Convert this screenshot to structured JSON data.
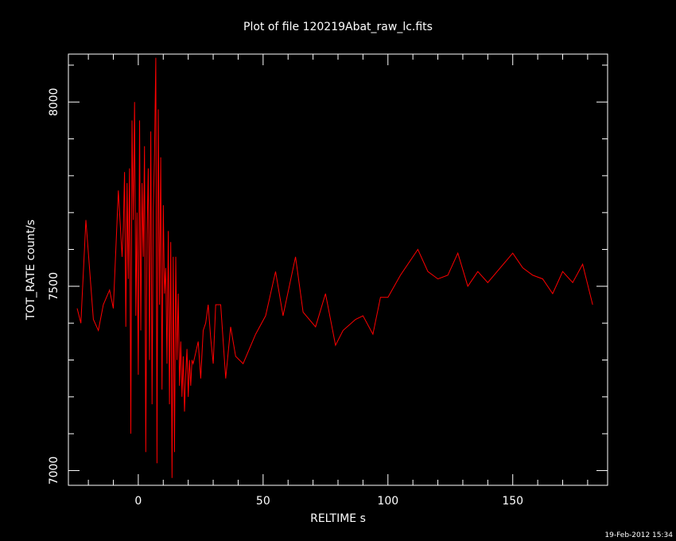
{
  "chart_data": {
    "type": "line",
    "title": "Plot of file 120219Abat_raw_lc.fits",
    "xlabel": "RELTIME  s",
    "ylabel": "TOT_RATE  count/s",
    "xlim": [
      -28,
      188
    ],
    "ylim": [
      6960,
      8130
    ],
    "xticks": [
      0,
      50,
      100,
      150
    ],
    "yticks": [
      7000,
      7500,
      8000
    ],
    "grid": false,
    "line_color": "#ff0000",
    "axis_color": "#ffffff",
    "background": "#000000",
    "series": [
      {
        "x": [
          -24.5,
          -23,
          -21,
          -18,
          -16,
          -14,
          -11.5,
          -10,
          -8,
          -6.5,
          -6,
          -5.5,
          -5,
          -4.5,
          -4,
          -3.5,
          -3,
          -2.5,
          -2,
          -1.5,
          -1,
          -0.5,
          0,
          0.5,
          1,
          1.5,
          2,
          2.5,
          3,
          3.5,
          4,
          4.5,
          5,
          5.5,
          6,
          6.5,
          7,
          7.5,
          8,
          8.5,
          9,
          9.5,
          10,
          10.5,
          11,
          11.5,
          12,
          12.5,
          13,
          13.5,
          14,
          14.5,
          15,
          15.5,
          16,
          16.5,
          17,
          17.5,
          18,
          18.5,
          19,
          19.5,
          20,
          20.5,
          21,
          21.5,
          22,
          23,
          24,
          25,
          26,
          27,
          28,
          29,
          30,
          31,
          33,
          35,
          37,
          39,
          42,
          47,
          51,
          55,
          58,
          63,
          66,
          71,
          75,
          79,
          82,
          87,
          90,
          94,
          97,
          100,
          105,
          112,
          116,
          120,
          124,
          128,
          132,
          136,
          140,
          145,
          150,
          154,
          158,
          162,
          166,
          170,
          174,
          178,
          182
        ],
        "y": [
          7440,
          7400,
          7680,
          7410,
          7380,
          7450,
          7490,
          7440,
          7760,
          7580,
          7660,
          7810,
          7390,
          7780,
          7520,
          7820,
          7100,
          7950,
          7680,
          8000,
          7420,
          7700,
          7260,
          7950,
          7380,
          7780,
          7580,
          7880,
          7050,
          7640,
          7820,
          7300,
          7920,
          7180,
          7700,
          7860,
          8120,
          7020,
          7980,
          7450,
          7850,
          7220,
          7720,
          7480,
          7550,
          7290,
          7650,
          7180,
          7620,
          6980,
          7580,
          7050,
          7580,
          7300,
          7480,
          7230,
          7350,
          7200,
          7310,
          7160,
          7260,
          7330,
          7200,
          7300,
          7230,
          7300,
          7290,
          7320,
          7350,
          7250,
          7380,
          7400,
          7450,
          7360,
          7290,
          7450,
          7450,
          7250,
          7390,
          7310,
          7290,
          7370,
          7420,
          7540,
          7420,
          7580,
          7430,
          7390,
          7480,
          7340,
          7380,
          7410,
          7420,
          7370,
          7470,
          7470,
          7530,
          7600,
          7540,
          7520,
          7530,
          7590,
          7500,
          7540,
          7510,
          7550,
          7590,
          7550,
          7530,
          7520,
          7480,
          7540,
          7510,
          7560,
          7450
        ]
      }
    ]
  },
  "footer": {
    "timestamp": "19-Feb-2012 15:34"
  }
}
